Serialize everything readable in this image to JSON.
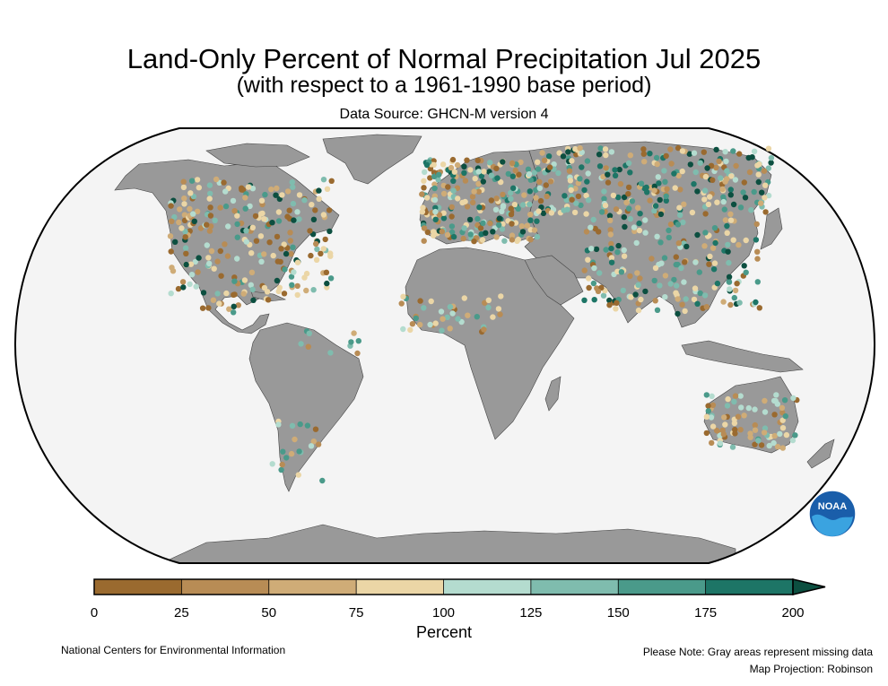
{
  "title": "Land-Only Percent of Normal Precipitation Jul 2025",
  "subtitle": "(with respect to a 1961-1990 base period)",
  "source": "Data Source: GHCN-M version 4",
  "colorbar": {
    "label": "Percent",
    "ticks": [
      "0",
      "25",
      "50",
      "75",
      "100",
      "125",
      "150",
      "175",
      "200"
    ],
    "colors": [
      "#9a6a2f",
      "#b88c55",
      "#cfac77",
      "#ebd6a6",
      "#b4dccf",
      "#7fbcae",
      "#4a9a8a",
      "#1d7566",
      "#0c4f40"
    ]
  },
  "logo": {
    "text": "NOAA",
    "icon": "noaa-logo-icon"
  },
  "footer": {
    "left": "National Centers for Environmental Information",
    "right_line1": "Please Note: Gray areas represent missing data",
    "right_line2": "Map Projection: Robinson"
  },
  "colors": {
    "ocean": "#f4f4f4",
    "land": "#999999",
    "border": "#000000"
  },
  "stations": {
    "north_america": [
      "#9a6a2f",
      "#ebd6a6",
      "#0c4f40",
      "#7fbcae",
      "#cfac77",
      "#b88c55",
      "#b4dccf",
      "#4a9a8a",
      "#ebd6a6",
      "#9a6a2f"
    ],
    "europe_asia": [
      "#cfac77",
      "#9a6a2f",
      "#ebd6a6",
      "#b88c55",
      "#0c4f40",
      "#7fbcae",
      "#b4dccf",
      "#4a9a8a",
      "#ebd6a6",
      "#1d7566"
    ],
    "other": [
      "#ebd6a6",
      "#b88c55",
      "#7fbcae",
      "#cfac77",
      "#9a6a2f",
      "#b4dccf",
      "#4a9a8a"
    ]
  }
}
